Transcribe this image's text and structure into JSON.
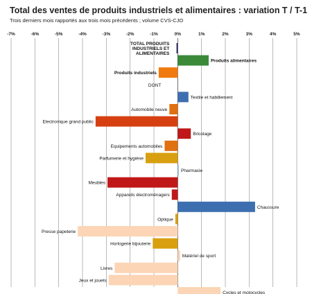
{
  "title": "Total des ventes de produits industriels et alimentaires : variation T / T-1",
  "subtitle": "Trois derniers mois rapportés aux trois mois précédents ; volume CVS-CJO",
  "chart_data": {
    "type": "bar",
    "orientation": "horizontal",
    "title": "Total des ventes de produits industriels et alimentaires : variation T / T-1",
    "subtitle": "Trois derniers mois rapportés aux trois mois précédents ; volume CVS-CJO",
    "xlim": [
      -7,
      5
    ],
    "x_ticks": [
      "-7%",
      "-6%",
      "-5%",
      "-4%",
      "-3%",
      "-2%",
      "-1%",
      "0%",
      "1%",
      "2%",
      "3%",
      "4%",
      "5%"
    ],
    "grid": true,
    "legend": "none",
    "categories": [
      {
        "label": "TOTAL PRODUITS INDUSTRIELS ET ALIMENTAIRES",
        "lines": [
          "TOTAL PRODUITS",
          "INDUSTRIELS ET",
          "ALIMENTAIRES"
        ],
        "value": -0.05,
        "color": "#1f1f5a",
        "bold": true
      },
      {
        "label": "Produits alimentaires",
        "value": 1.3,
        "color": "#3a8a3a",
        "bold": true
      },
      {
        "label": "Produits industriels",
        "value": -0.8,
        "color": "#f07a10",
        "bold": true
      },
      {
        "label": "DONT",
        "value": 0,
        "color": "#ffffff",
        "bold": false
      },
      {
        "label": "Textile et habillement",
        "value": 0.45,
        "color": "#3d6fb0",
        "bold": false
      },
      {
        "label": "Automobile neuve",
        "value": -0.35,
        "color": "#e07010",
        "bold": false
      },
      {
        "label": "Electronique grand public",
        "value": -3.45,
        "color": "#d64010",
        "bold": false
      },
      {
        "label": "Bricolage",
        "value": 0.55,
        "color": "#c01818",
        "bold": false
      },
      {
        "label": "Equipements automobiles",
        "value": -0.55,
        "color": "#e07010",
        "bold": false
      },
      {
        "label": "Parfumerie et hygiène",
        "value": -1.35,
        "color": "#d8a010",
        "bold": false
      },
      {
        "label": "Pharmacie",
        "value": 0.05,
        "color": "#a8cce8",
        "bold": false
      },
      {
        "label": "Meubles",
        "value": -2.95,
        "color": "#c01818",
        "bold": false
      },
      {
        "label": "Appareils électroménagers",
        "value": -0.25,
        "color": "#c01818",
        "bold": false
      },
      {
        "label": "Chaussure",
        "value": 3.25,
        "color": "#3d6fb0",
        "bold": false
      },
      {
        "label": "Optique",
        "value": -0.1,
        "color": "#d8a010",
        "bold": false
      },
      {
        "label": "Presse papeterie",
        "value": -4.2,
        "color": "#fbd5b5",
        "bold": false
      },
      {
        "label": "Horlogerie bijouterie",
        "value": -1.05,
        "color": "#d8a010",
        "bold": false
      },
      {
        "label": "Matériel de sport",
        "value": 0.1,
        "color": "#fbd5b5",
        "bold": false
      },
      {
        "label": "Livres",
        "value": -2.65,
        "color": "#fbd5b5",
        "bold": false
      },
      {
        "label": "Jeux et jouets",
        "value": -2.9,
        "color": "#fbd5b5",
        "bold": false
      },
      {
        "label": "Cycles et motocycles",
        "value": 1.8,
        "color": "#fbd5b5",
        "bold": false
      }
    ]
  }
}
